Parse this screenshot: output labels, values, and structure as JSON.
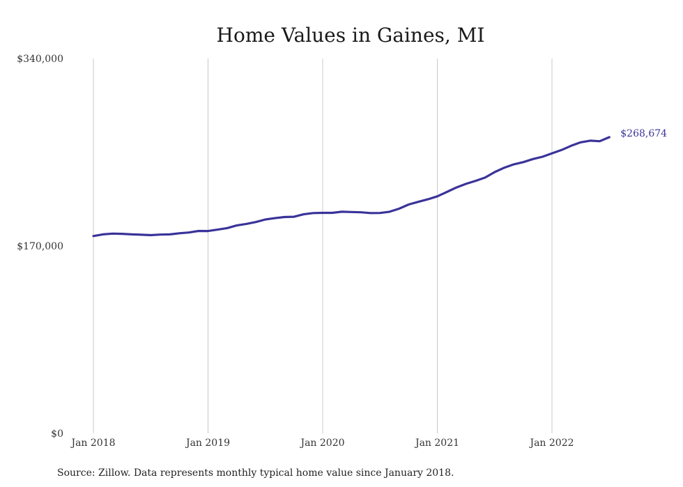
{
  "chart_data": {
    "type": "line",
    "title": "Home Values in Gaines, MI",
    "xlabel": "",
    "ylabel": "",
    "ylim": [
      0,
      340000
    ],
    "y_ticks": [
      {
        "value": 0,
        "label": "$0"
      },
      {
        "value": 170000,
        "label": "$170,000"
      },
      {
        "value": 340000,
        "label": "$340,000"
      }
    ],
    "x_ticks": [
      {
        "date": "2018-01",
        "label": "Jan 2018"
      },
      {
        "date": "2019-01",
        "label": "Jan 2019"
      },
      {
        "date": "2020-01",
        "label": "Jan 2020"
      },
      {
        "date": "2021-01",
        "label": "Jan 2021"
      },
      {
        "date": "2022-01",
        "label": "Jan 2022"
      }
    ],
    "grid": {
      "vertical": true,
      "horizontal": false
    },
    "series_color": "#3a3399",
    "end_label": "$268,674",
    "source": "Source: Zillow. Data represents monthly typical home value since January 2018.",
    "series": [
      {
        "x": [
          "2018-01",
          "2018-02",
          "2018-03",
          "2018-04",
          "2018-05",
          "2018-06",
          "2018-07",
          "2018-08",
          "2018-09",
          "2018-10",
          "2018-11",
          "2018-12",
          "2019-01",
          "2019-02",
          "2019-03",
          "2019-04",
          "2019-05",
          "2019-06",
          "2019-07",
          "2019-08",
          "2019-09",
          "2019-10",
          "2019-11",
          "2019-12",
          "2020-01",
          "2020-02",
          "2020-03",
          "2020-04",
          "2020-05",
          "2020-06",
          "2020-07",
          "2020-08",
          "2020-09",
          "2020-10",
          "2020-11",
          "2020-12",
          "2021-01",
          "2021-02",
          "2021-03",
          "2021-04",
          "2021-05",
          "2021-06",
          "2021-07",
          "2021-08",
          "2021-09",
          "2021-10",
          "2021-11",
          "2021-12",
          "2022-01",
          "2022-02",
          "2022-03",
          "2022-04",
          "2022-05",
          "2022-06",
          "2022-07"
        ],
        "values": [
          179000,
          180500,
          181200,
          181000,
          180500,
          180200,
          179800,
          180300,
          180500,
          181500,
          182200,
          183600,
          183500,
          184800,
          186200,
          188600,
          190000,
          191700,
          194000,
          195200,
          196200,
          196500,
          198700,
          199800,
          200000,
          200000,
          201000,
          200800,
          200500,
          199800,
          199900,
          201000,
          203800,
          207600,
          210000,
          212300,
          215000,
          219000,
          223000,
          226300,
          229000,
          232000,
          237000,
          241000,
          244000,
          246000,
          248800,
          250900,
          254000,
          257000,
          260800,
          264000,
          265500,
          265000,
          268674
        ]
      }
    ]
  }
}
